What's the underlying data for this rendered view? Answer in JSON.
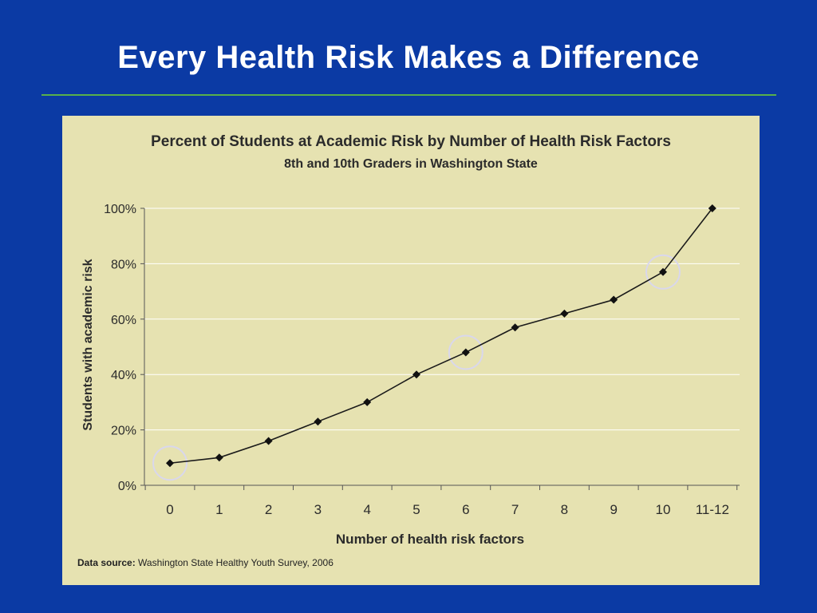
{
  "slide": {
    "title": "Every Health Risk Makes a Difference",
    "background_color": "#0b3aa4",
    "rule_color": "#59b04a",
    "panel_color": "#e6e2b1"
  },
  "chart_data": {
    "type": "line",
    "title": "Percent of Students at Academic Risk by Number of Health Risk Factors",
    "subtitle": "8th and 10th Graders in Washington State",
    "xlabel": "Number of health risk factors",
    "ylabel": "Students with academic risk",
    "categories": [
      "0",
      "1",
      "2",
      "3",
      "4",
      "5",
      "6",
      "7",
      "8",
      "9",
      "10",
      "11-12"
    ],
    "series": [
      {
        "values": [
          8,
          10,
          16,
          23,
          30,
          40,
          48,
          57,
          62,
          67,
          77,
          100
        ]
      }
    ],
    "ylim": [
      0,
      100
    ],
    "yticks": [
      0,
      20,
      40,
      60,
      80,
      100
    ],
    "ytick_labels": [
      "0%",
      "20%",
      "40%",
      "60%",
      "80%",
      "100%"
    ],
    "grid": true,
    "highlighted_categories": [
      "0",
      "6",
      "10"
    ],
    "source_label": "Data source:",
    "source_text": "Washington State Healthy Youth Survey, 2006"
  }
}
